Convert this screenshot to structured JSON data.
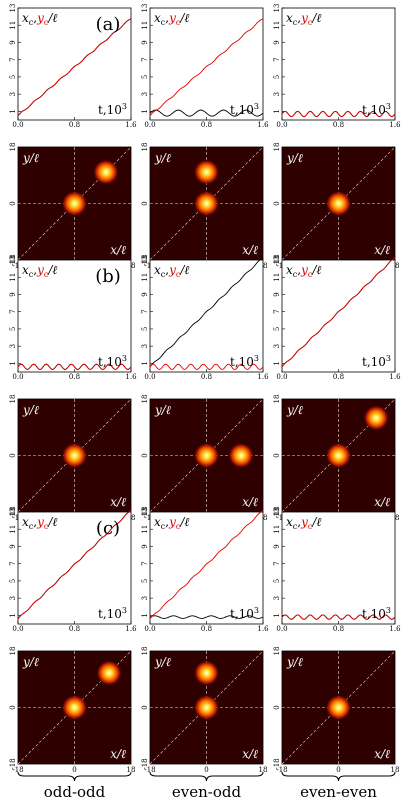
{
  "figure": {
    "row_labels": [
      "(a)",
      "(b)",
      "(c)"
    ],
    "column_labels": [
      "odd-odd",
      "even-odd",
      "even-even"
    ],
    "traj_ylabel_x": "x",
    "traj_ylabel_c": "c",
    "traj_ylabel_sep": ",",
    "traj_ylabel_y": "y",
    "traj_ylabel_suffix": "/ℓ",
    "traj_xlabel": "t,10",
    "traj_xlabel_exp": "3",
    "map_ylabel": "y/ℓ",
    "map_xlabel": "x/ℓ",
    "colors": {
      "x_series": "#000000",
      "y_series": "#e00000",
      "map_bg": "#2e0000",
      "guide": "#e8dcc8"
    }
  },
  "chart_data": [
    {
      "panel": "a1",
      "type": "line",
      "x_range": [
        0,
        1.6
      ],
      "y_range": [
        0,
        13
      ],
      "x_ticks": [
        "0.0",
        "0.8",
        "1.6"
      ],
      "y_ticks": [
        "1",
        "3",
        "5",
        "7",
        "9",
        "11",
        "13"
      ],
      "series": [
        {
          "name": "x_c",
          "x": [
            0,
            1.6
          ],
          "y": [
            0.5,
            11.8
          ]
        },
        {
          "name": "y_c",
          "x": [
            0,
            1.6
          ],
          "y": [
            0.5,
            11.8
          ]
        }
      ]
    },
    {
      "panel": "a2",
      "type": "line",
      "x_range": [
        0,
        1.6
      ],
      "y_range": [
        0,
        13
      ],
      "x_ticks": [
        "0.0",
        "0.8",
        "1.6"
      ],
      "y_ticks": [
        "1",
        "3",
        "5",
        "7",
        "9",
        "11",
        "13"
      ],
      "series": [
        {
          "name": "x_c",
          "mean": 0.8,
          "amp": 0.35,
          "periods": 5
        },
        {
          "name": "y_c",
          "x": [
            0,
            1.6
          ],
          "y": [
            0.5,
            11.8
          ]
        }
      ]
    },
    {
      "panel": "a3",
      "type": "line",
      "x_range": [
        0,
        1.6
      ],
      "y_range": [
        0,
        13
      ],
      "x_ticks": [
        "0.0",
        "0.8",
        "1.6"
      ],
      "y_ticks": [
        "1",
        "3",
        "5",
        "7",
        "9",
        "11",
        "13"
      ],
      "series": [
        {
          "name": "x_c",
          "mean": 0.7,
          "amp": 0.3,
          "periods": 9
        },
        {
          "name": "y_c",
          "mean": 0.7,
          "amp": 0.3,
          "periods": 9
        }
      ]
    },
    {
      "panel": "a1map",
      "type": "heatmap",
      "x_range": [
        -18,
        18
      ],
      "y_range": [
        -18,
        18
      ],
      "x_ticks": [
        "-18",
        "0",
        "18"
      ],
      "y_ticks": [
        "-18",
        "0",
        "18"
      ],
      "peaks": [
        [
          0,
          0
        ],
        [
          10,
          10
        ]
      ]
    },
    {
      "panel": "a2map",
      "type": "heatmap",
      "x_range": [
        -18,
        18
      ],
      "y_range": [
        -18,
        18
      ],
      "x_ticks": [
        "-18",
        "0",
        "18"
      ],
      "y_ticks": [
        "-18",
        "0",
        "18"
      ],
      "peaks": [
        [
          0,
          0
        ],
        [
          0,
          10
        ]
      ]
    },
    {
      "panel": "a3map",
      "type": "heatmap",
      "x_range": [
        -18,
        18
      ],
      "y_range": [
        -18,
        18
      ],
      "x_ticks": [
        "-18",
        "0",
        "18"
      ],
      "y_ticks": [
        "-18",
        "0",
        "18"
      ],
      "peaks": [
        [
          0,
          0
        ]
      ]
    },
    {
      "panel": "b1",
      "type": "line",
      "x_range": [
        0,
        1.6
      ],
      "y_range": [
        0,
        13
      ],
      "x_ticks": [
        "0.0",
        "0.8",
        "1.6"
      ],
      "y_ticks": [
        "1",
        "3",
        "5",
        "7",
        "9",
        "11",
        "13"
      ],
      "series": [
        {
          "name": "x_c",
          "mean": 0.6,
          "amp": 0.3,
          "periods": 9
        },
        {
          "name": "y_c",
          "mean": 0.6,
          "amp": 0.3,
          "periods": 9
        }
      ]
    },
    {
      "panel": "b2",
      "type": "line",
      "x_range": [
        0,
        1.6
      ],
      "y_range": [
        0,
        13
      ],
      "x_ticks": [
        "0.0",
        "0.8",
        "1.6"
      ],
      "y_ticks": [
        "1",
        "3",
        "5",
        "7",
        "9",
        "11",
        "13"
      ],
      "series": [
        {
          "name": "x_c",
          "x": [
            0,
            1.6
          ],
          "y": [
            0.6,
            13.3
          ]
        },
        {
          "name": "y_c",
          "mean": 0.6,
          "amp": 0.3,
          "periods": 9
        }
      ]
    },
    {
      "panel": "b3",
      "type": "line",
      "x_range": [
        0,
        1.6
      ],
      "y_range": [
        0,
        13
      ],
      "x_ticks": [
        "0.0",
        "0.8",
        "1.6"
      ],
      "y_ticks": [
        "1",
        "3",
        "5",
        "7",
        "9",
        "11",
        "13"
      ],
      "series": [
        {
          "name": "x_c",
          "x": [
            0,
            1.6
          ],
          "y": [
            0.6,
            13.3
          ]
        },
        {
          "name": "y_c",
          "x": [
            0,
            1.6
          ],
          "y": [
            0.6,
            13.3
          ]
        }
      ]
    },
    {
      "panel": "b1map",
      "type": "heatmap",
      "x_range": [
        -18,
        18
      ],
      "y_range": [
        -18,
        18
      ],
      "x_ticks": [
        "-18",
        "0",
        "18"
      ],
      "y_ticks": [
        "-18",
        "0",
        "18"
      ],
      "peaks": [
        [
          0,
          0
        ]
      ]
    },
    {
      "panel": "b2map",
      "type": "heatmap",
      "x_range": [
        -18,
        18
      ],
      "y_range": [
        -18,
        18
      ],
      "x_ticks": [
        "-18",
        "0",
        "18"
      ],
      "y_ticks": [
        "-18",
        "0",
        "18"
      ],
      "peaks": [
        [
          0,
          0
        ],
        [
          11,
          0
        ]
      ]
    },
    {
      "panel": "b3map",
      "type": "heatmap",
      "x_range": [
        -18,
        18
      ],
      "y_range": [
        -18,
        18
      ],
      "x_ticks": [
        "-18",
        "0",
        "18"
      ],
      "y_ticks": [
        "-18",
        "0",
        "18"
      ],
      "peaks": [
        [
          0,
          0
        ],
        [
          12,
          12
        ]
      ]
    },
    {
      "panel": "c1",
      "type": "line",
      "x_range": [
        0,
        1.6
      ],
      "y_range": [
        0,
        13
      ],
      "x_ticks": [
        "0.0",
        "0.8",
        "1.6"
      ],
      "y_ticks": [
        "1",
        "3",
        "5",
        "7",
        "9",
        "11",
        "13"
      ],
      "series": [
        {
          "name": "x_c",
          "x": [
            0,
            1.6
          ],
          "y": [
            0.6,
            13.2
          ]
        },
        {
          "name": "y_c",
          "x": [
            0,
            1.6
          ],
          "y": [
            0.6,
            13.2
          ]
        }
      ]
    },
    {
      "panel": "c2",
      "type": "line",
      "x_range": [
        0,
        1.6
      ],
      "y_range": [
        0,
        13
      ],
      "x_ticks": [
        "0.0",
        "0.8",
        "1.6"
      ],
      "y_ticks": [
        "1",
        "3",
        "5",
        "7",
        "9",
        "11",
        "13"
      ],
      "series": [
        {
          "name": "x_c",
          "mean": 0.8,
          "amp": 0.15,
          "periods": 6
        },
        {
          "name": "y_c",
          "x": [
            0,
            1.6
          ],
          "y": [
            0.6,
            13.2
          ]
        }
      ]
    },
    {
      "panel": "c3",
      "type": "line",
      "x_range": [
        0,
        1.6
      ],
      "y_range": [
        0,
        13
      ],
      "x_ticks": [
        "0.0",
        "0.8",
        "1.6"
      ],
      "y_ticks": [
        "1",
        "3",
        "5",
        "7",
        "9",
        "11",
        "13"
      ],
      "series": [
        {
          "name": "x_c",
          "mean": 0.8,
          "amp": 0.25,
          "periods": 9
        },
        {
          "name": "y_c",
          "mean": 0.8,
          "amp": 0.25,
          "periods": 9
        }
      ]
    },
    {
      "panel": "c1map",
      "type": "heatmap",
      "x_range": [
        -18,
        18
      ],
      "y_range": [
        -18,
        18
      ],
      "x_ticks": [
        "-18",
        "0",
        "18"
      ],
      "y_ticks": [
        "-18",
        "0",
        "18"
      ],
      "peaks": [
        [
          0,
          0
        ],
        [
          11,
          11
        ]
      ]
    },
    {
      "panel": "c2map",
      "type": "heatmap",
      "x_range": [
        -18,
        18
      ],
      "y_range": [
        -18,
        18
      ],
      "x_ticks": [
        "-18",
        "0",
        "18"
      ],
      "y_ticks": [
        "-18",
        "0",
        "18"
      ],
      "peaks": [
        [
          0,
          0
        ],
        [
          0,
          11
        ]
      ]
    },
    {
      "panel": "c3map",
      "type": "heatmap",
      "x_range": [
        -18,
        18
      ],
      "y_range": [
        -18,
        18
      ],
      "x_ticks": [
        "-18",
        "0",
        "18"
      ],
      "y_ticks": [
        "-18",
        "0",
        "18"
      ],
      "peaks": [
        [
          0,
          0
        ]
      ]
    }
  ]
}
